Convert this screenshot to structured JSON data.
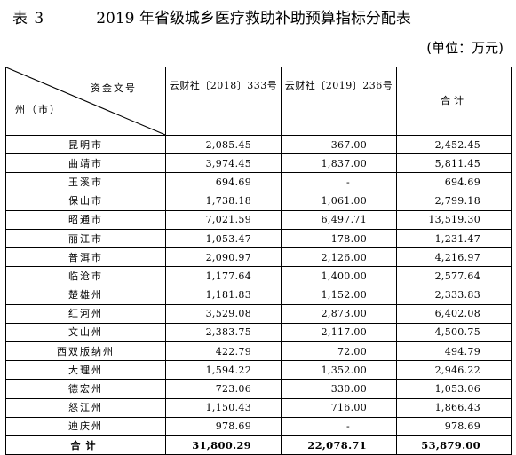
{
  "header": {
    "table_label": "表 3",
    "title": "2019 年省级城乡医疗救助补助预算指标分配表",
    "unit": "(单位：万元)"
  },
  "table": {
    "corner_top": "资金文号",
    "corner_bottom": "州（市）",
    "col1": "云财社〔2018〕333号",
    "col2": "云财社〔2019〕236号",
    "col3": "合计",
    "rows": [
      {
        "name": "昆明市",
        "v2018": "2,085.45",
        "v2019": "367.00",
        "total": "2,452.45"
      },
      {
        "name": "曲靖市",
        "v2018": "3,974.45",
        "v2019": "1,837.00",
        "total": "5,811.45"
      },
      {
        "name": "玉溪市",
        "v2018": "694.69",
        "v2019": "-",
        "total": "694.69"
      },
      {
        "name": "保山市",
        "v2018": "1,738.18",
        "v2019": "1,061.00",
        "total": "2,799.18"
      },
      {
        "name": "昭通市",
        "v2018": "7,021.59",
        "v2019": "6,497.71",
        "total": "13,519.30"
      },
      {
        "name": "丽江市",
        "v2018": "1,053.47",
        "v2019": "178.00",
        "total": "1,231.47"
      },
      {
        "name": "普洱市",
        "v2018": "2,090.97",
        "v2019": "2,126.00",
        "total": "4,216.97"
      },
      {
        "name": "临沧市",
        "v2018": "1,177.64",
        "v2019": "1,400.00",
        "total": "2,577.64"
      },
      {
        "name": "楚雄州",
        "v2018": "1,181.83",
        "v2019": "1,152.00",
        "total": "2,333.83"
      },
      {
        "name": "红河州",
        "v2018": "3,529.08",
        "v2019": "2,873.00",
        "total": "6,402.08"
      },
      {
        "name": "文山州",
        "v2018": "2,383.75",
        "v2019": "2,117.00",
        "total": "4,500.75"
      },
      {
        "name": "西双版纳州",
        "v2018": "422.79",
        "v2019": "72.00",
        "total": "494.79"
      },
      {
        "name": "大理州",
        "v2018": "1,594.22",
        "v2019": "1,352.00",
        "total": "2,946.22"
      },
      {
        "name": "德宏州",
        "v2018": "723.06",
        "v2019": "330.00",
        "total": "1,053.06"
      },
      {
        "name": "怒江州",
        "v2018": "1,150.43",
        "v2019": "716.00",
        "total": "1,866.43"
      },
      {
        "name": "迪庆州",
        "v2018": "978.69",
        "v2019": "-",
        "total": "978.69"
      }
    ],
    "sum": {
      "name": "合计",
      "v2018": "31,800.29",
      "v2019": "22,078.71",
      "total": "53,879.00"
    }
  }
}
